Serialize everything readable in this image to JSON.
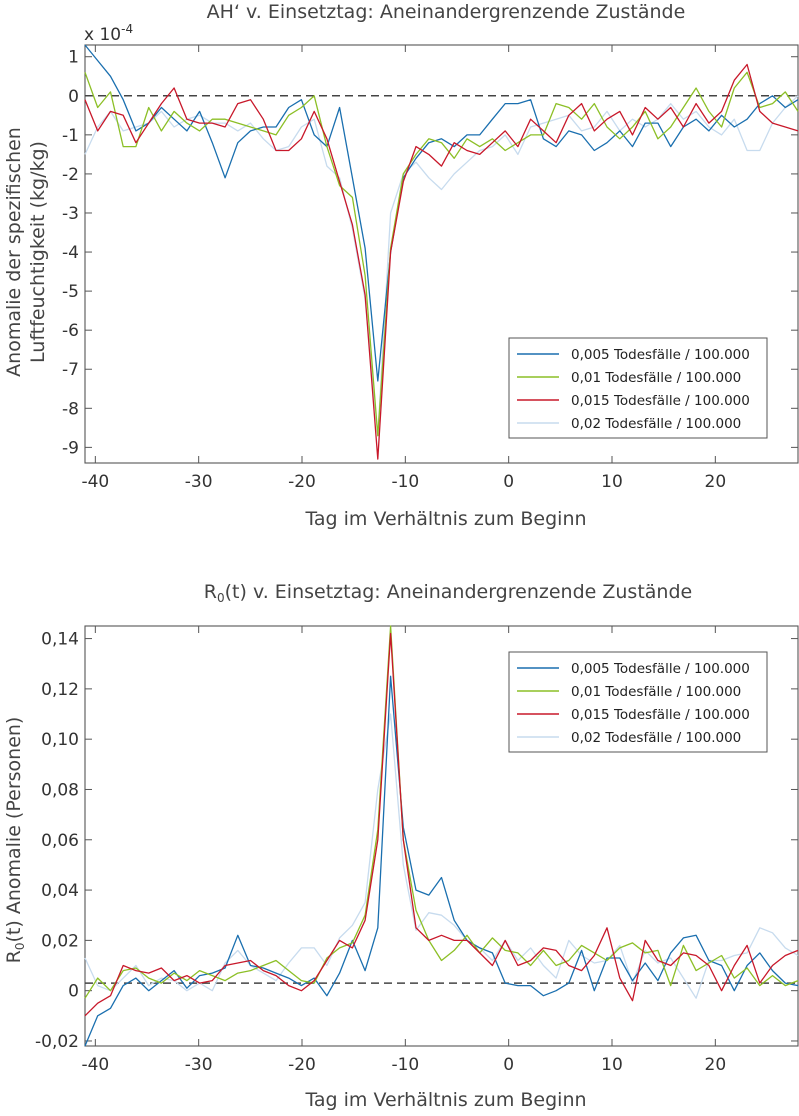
{
  "chart_data": [
    {
      "type": "line",
      "title": "AH‘ v. Einsetztag: Aneinandergrenzende Zustände",
      "exponent_label": "x 10",
      "exponent_value": "-4",
      "xlabel": "Tag im Verhältnis zum Beginn",
      "ylabel_line1": "Anomalie der spezifischen",
      "ylabel_line2": "Luftfeuchtigkeit (kg/kg)",
      "xlim": [
        -41,
        28
      ],
      "ylim": [
        -9.4,
        1.3
      ],
      "xticks": [
        -40,
        -30,
        -20,
        -10,
        0,
        10,
        20
      ],
      "xtick_labels": [
        "-40",
        "-30",
        "-20",
        "-10",
        "0",
        "10",
        "20"
      ],
      "yticks": [
        1,
        0,
        -1,
        -2,
        -3,
        -4,
        -5,
        -6,
        -7,
        -8,
        -9
      ],
      "ytick_labels": [
        "1",
        "0",
        "-1",
        "-2",
        "-3",
        "-4",
        "-5",
        "-6",
        "-7",
        "-8",
        "-9"
      ],
      "reference_line": 0,
      "legend_position": "lower-right",
      "series": [
        {
          "name": "0,005 Todesfälle / 100.000",
          "color": "#1a6faf",
          "values": [
            1.3,
            0.9,
            0.5,
            -0.1,
            -0.9,
            -0.7,
            -0.3,
            -0.6,
            -0.9,
            -0.4,
            -1.2,
            -2.1,
            -1.2,
            -0.9,
            -0.8,
            -0.8,
            -0.3,
            -0.1,
            -1.0,
            -1.3,
            -0.3,
            -2.1,
            -3.9,
            -7.3,
            -4.0,
            -2.1,
            -1.6,
            -1.2,
            -1.1,
            -1.3,
            -1.0,
            -1.0,
            -0.6,
            -0.2,
            -0.2,
            -0.1,
            -1.1,
            -1.3,
            -0.9,
            -1.0,
            -1.4,
            -1.2,
            -0.9,
            -1.3,
            -0.7,
            -0.7,
            -1.3,
            -0.8,
            -0.6,
            -0.9,
            -0.5,
            -0.8,
            -0.6,
            -0.2,
            0.0,
            -0.3,
            -0.1
          ]
        },
        {
          "name": "0,01 Todesfälle / 100.000",
          "color": "#8cbf26",
          "values": [
            0.6,
            -0.3,
            0.1,
            -1.3,
            -1.3,
            -0.3,
            -0.9,
            -0.4,
            -0.7,
            -0.9,
            -0.6,
            -0.6,
            -0.7,
            -0.8,
            -0.9,
            -1.0,
            -0.5,
            -0.3,
            0.0,
            -1.3,
            -2.3,
            -2.6,
            -4.6,
            -8.7,
            -3.9,
            -2.0,
            -1.5,
            -1.1,
            -1.2,
            -1.6,
            -1.1,
            -1.3,
            -1.1,
            -1.4,
            -1.2,
            -1.0,
            -1.0,
            -0.2,
            -0.3,
            -0.6,
            -0.2,
            -0.8,
            -1.1,
            -0.8,
            -0.4,
            -1.1,
            -0.8,
            -0.3,
            0.2,
            -0.4,
            -0.8,
            0.2,
            0.6,
            -0.3,
            -0.2,
            0.1,
            -0.4
          ]
        },
        {
          "name": "0,015 Todesfälle / 100.000",
          "color": "#c8182a",
          "values": [
            -0.1,
            -0.9,
            -0.4,
            -0.5,
            -1.2,
            -0.7,
            -0.2,
            0.2,
            -0.6,
            -0.7,
            -0.7,
            -0.8,
            -0.2,
            -0.1,
            -0.6,
            -1.4,
            -1.4,
            -1.1,
            -0.4,
            -1.1,
            -2.2,
            -3.3,
            -5.1,
            -9.3,
            -4.0,
            -2.2,
            -1.3,
            -1.5,
            -1.8,
            -1.2,
            -1.4,
            -1.5,
            -1.2,
            -0.9,
            -1.3,
            -0.6,
            -0.9,
            -1.2,
            -0.5,
            -0.2,
            -0.9,
            -0.6,
            -0.4,
            -1.0,
            -0.3,
            -0.6,
            -0.3,
            -0.8,
            -0.2,
            -0.7,
            -0.4,
            0.4,
            0.8,
            -0.4,
            -0.7,
            -0.8,
            -0.9
          ]
        },
        {
          "name": "0,02 Todesfälle / 100.000",
          "color": "#c7dbee",
          "values": [
            -1.5,
            -0.8,
            -0.4,
            -0.9,
            -0.8,
            -0.7,
            -0.4,
            -0.8,
            -0.6,
            -0.5,
            -0.7,
            -0.7,
            -0.9,
            -0.7,
            -1.1,
            -1.4,
            -1.3,
            -0.8,
            -0.6,
            -1.8,
            -2.1,
            -3.4,
            -5.2,
            -8.7,
            -3.0,
            -2.0,
            -1.7,
            -2.1,
            -2.4,
            -2.0,
            -1.7,
            -1.4,
            -1.3,
            -1.0,
            -1.5,
            -0.8,
            -0.7,
            -0.6,
            -0.5,
            -0.9,
            -0.8,
            -0.4,
            -0.9,
            -0.6,
            -0.8,
            -0.6,
            -0.2,
            -0.6,
            -0.4,
            -0.8,
            -1.0,
            -0.6,
            -1.4,
            -1.4,
            -0.7,
            -0.3,
            0.0
          ]
        }
      ]
    },
    {
      "type": "line",
      "title_prefix": "R",
      "title_subscript": "0",
      "title_suffix": "(t) v. Einsetztag: Aneinandergrenzende Zustände",
      "xlabel": "Tag im Verhältnis zum Beginn",
      "ylabel_prefix": "R",
      "ylabel_subscript": "0",
      "ylabel_suffix": "(t) Anomalie  (Personen)",
      "xlim": [
        -41,
        28
      ],
      "ylim": [
        -0.022,
        0.145
      ],
      "xticks": [
        -40,
        -30,
        -20,
        -10,
        0,
        10,
        20
      ],
      "xtick_labels": [
        "-40",
        "-30",
        "-20",
        "-10",
        "0",
        "10",
        "20"
      ],
      "yticks": [
        0.14,
        0.12,
        0.1,
        0.08,
        0.06,
        0.04,
        0.02,
        0,
        -0.02
      ],
      "ytick_labels": [
        "0,14",
        "0,12",
        "0,10",
        "0,08",
        "0,06",
        "0,04",
        "0,02",
        "0",
        "-0,02"
      ],
      "reference_line": 0.003,
      "legend_position": "upper-right",
      "series": [
        {
          "name": "0,005 Todesfälle / 100.000",
          "color": "#1a6faf",
          "values": [
            -0.022,
            -0.01,
            -0.007,
            0.002,
            0.005,
            0.0,
            0.004,
            0.008,
            0.001,
            0.006,
            0.007,
            0.009,
            0.022,
            0.01,
            0.009,
            0.007,
            0.005,
            0.002,
            0.005,
            -0.002,
            0.007,
            0.02,
            0.008,
            0.025,
            0.125,
            0.065,
            0.04,
            0.038,
            0.045,
            0.028,
            0.02,
            0.017,
            0.015,
            0.003,
            0.002,
            0.002,
            -0.002,
            0.0,
            0.003,
            0.016,
            0.0,
            0.013,
            0.013,
            0.004,
            0.011,
            0.004,
            0.015,
            0.021,
            0.022,
            0.012,
            0.01,
            0.0,
            0.01,
            0.015,
            0.008,
            0.003,
            0.002
          ]
        },
        {
          "name": "0,01 Todesfälle / 100.000",
          "color": "#8cbf26",
          "values": [
            -0.003,
            0.005,
            0.0,
            0.008,
            0.009,
            0.005,
            0.003,
            0.007,
            0.004,
            0.008,
            0.006,
            0.004,
            0.007,
            0.008,
            0.01,
            0.012,
            0.008,
            0.004,
            0.003,
            0.013,
            0.017,
            0.019,
            0.03,
            0.064,
            0.145,
            0.06,
            0.032,
            0.02,
            0.012,
            0.016,
            0.022,
            0.015,
            0.021,
            0.016,
            0.015,
            0.01,
            0.016,
            0.01,
            0.012,
            0.018,
            0.015,
            0.012,
            0.017,
            0.019,
            0.015,
            0.016,
            0.002,
            0.018,
            0.008,
            0.011,
            0.014,
            0.005,
            0.009,
            0.002,
            0.006,
            0.002,
            0.004
          ]
        },
        {
          "name": "0,015 Todesfälle / 100.000",
          "color": "#c8182a",
          "values": [
            -0.01,
            -0.005,
            -0.002,
            0.01,
            0.008,
            0.007,
            0.009,
            0.004,
            0.006,
            0.003,
            0.004,
            0.01,
            0.011,
            0.012,
            0.008,
            0.006,
            0.002,
            0.0,
            0.004,
            0.012,
            0.02,
            0.017,
            0.028,
            0.06,
            0.142,
            0.06,
            0.025,
            0.02,
            0.022,
            0.02,
            0.02,
            0.015,
            0.01,
            0.02,
            0.01,
            0.012,
            0.017,
            0.016,
            0.01,
            0.008,
            0.014,
            0.025,
            0.005,
            -0.004,
            0.02,
            0.012,
            0.01,
            0.015,
            0.014,
            0.01,
            0.0,
            0.01,
            0.018,
            0.003,
            0.01,
            0.014,
            0.016
          ]
        },
        {
          "name": "0,02 Todesfälle / 100.000",
          "color": "#c7dbee",
          "values": [
            0.013,
            0.002,
            0.0,
            0.005,
            0.01,
            0.002,
            0.005,
            0.004,
            0.0,
            0.003,
            0.0,
            0.011,
            0.016,
            0.01,
            0.007,
            0.004,
            0.011,
            0.017,
            0.017,
            0.01,
            0.021,
            0.026,
            0.035,
            0.08,
            0.11,
            0.05,
            0.024,
            0.031,
            0.03,
            0.026,
            0.02,
            0.017,
            0.012,
            0.02,
            0.012,
            0.017,
            0.01,
            0.005,
            0.02,
            0.014,
            0.011,
            0.012,
            0.018,
            0.003,
            0.016,
            0.011,
            0.013,
            0.005,
            -0.003,
            0.012,
            0.012,
            0.014,
            0.015,
            0.025,
            0.023,
            0.017,
            0.014
          ]
        }
      ]
    }
  ]
}
